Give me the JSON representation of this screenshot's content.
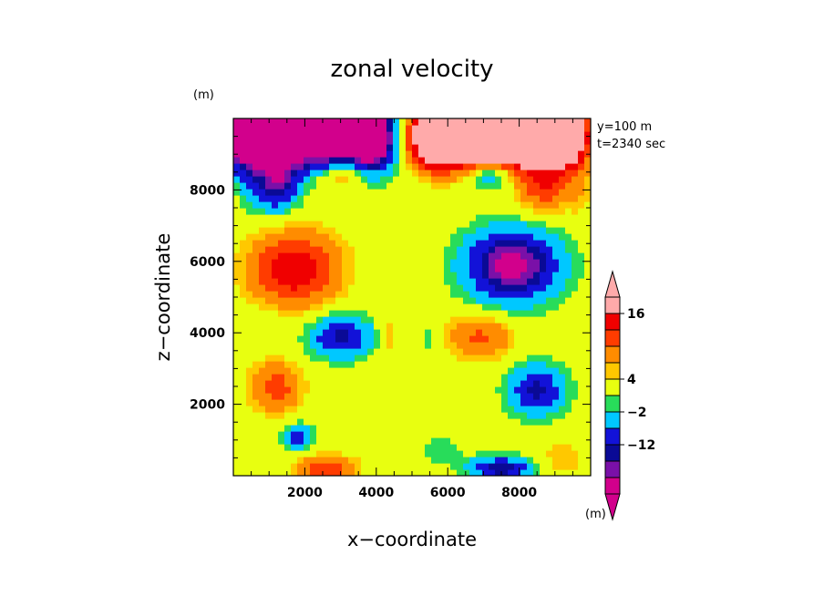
{
  "chart_data": {
    "type": "heatmap",
    "title": "zonal velocity",
    "xlabel": "x−coordinate",
    "ylabel": "z−coordinate",
    "x_unit": "(m)",
    "y_unit": "(m)",
    "xlim": [
      0,
      10000
    ],
    "ylim": [
      0,
      10000
    ],
    "x_ticks": [
      "2000",
      "4000",
      "6000",
      "8000"
    ],
    "y_ticks": [
      "2000",
      "4000",
      "6000",
      "8000"
    ],
    "x_tick_values": [
      2000,
      4000,
      6000,
      8000
    ],
    "y_tick_values": [
      2000,
      4000,
      6000,
      8000
    ],
    "annotations": [
      "y=100 m",
      "t=2340 sec"
    ],
    "colorbar": {
      "unit": "(m)",
      "labels": [
        "16",
        "4",
        "−2",
        "−12"
      ],
      "label_values": [
        16,
        4,
        -2,
        -12
      ],
      "colors": [
        "#d2008c",
        "#7a10a8",
        "#0a0a96",
        "#1212d8",
        "#00c8ff",
        "#28dc5a",
        "#e8ff10",
        "#ffc800",
        "#ff8c00",
        "#ff3c00",
        "#f00000",
        "#ffaaaa"
      ],
      "extend": "both"
    },
    "background_color": "#e8ff10",
    "field": [
      {
        "x": 400,
        "y": 9500,
        "sx": 700,
        "sz": 900,
        "value": -30
      },
      {
        "x": 1500,
        "y": 9500,
        "sx": 800,
        "sz": 900,
        "value": -30
      },
      {
        "x": 2800,
        "y": 9500,
        "sx": 800,
        "sz": 900,
        "value": -30
      },
      {
        "x": 3900,
        "y": 9500,
        "sx": 600,
        "sz": 900,
        "value": -30
      },
      {
        "x": 5700,
        "y": 9500,
        "sx": 700,
        "sz": 800,
        "value": 40
      },
      {
        "x": 6900,
        "y": 9500,
        "sx": 800,
        "sz": 800,
        "value": 40
      },
      {
        "x": 8100,
        "y": 9500,
        "sx": 800,
        "sz": 800,
        "value": 40
      },
      {
        "x": 9300,
        "y": 9500,
        "sx": 600,
        "sz": 800,
        "value": 35
      },
      {
        "x": 1200,
        "y": 8100,
        "sx": 600,
        "sz": 700,
        "value": -14
      },
      {
        "x": 400,
        "y": 8000,
        "sx": 300,
        "sz": 900,
        "value": -2
      },
      {
        "x": 3000,
        "y": 8500,
        "sx": 700,
        "sz": 500,
        "value": 9
      },
      {
        "x": 7200,
        "y": 8500,
        "sx": 600,
        "sz": 450,
        "value": -12
      },
      {
        "x": 8700,
        "y": 8100,
        "sx": 700,
        "sz": 700,
        "value": 11
      },
      {
        "x": 9700,
        "y": 8000,
        "sx": 300,
        "sz": 800,
        "value": 3
      },
      {
        "x": 1700,
        "y": 5800,
        "sx": 1200,
        "sz": 1000,
        "value": 16
      },
      {
        "x": 1000,
        "y": 4500,
        "sx": 400,
        "sz": 300,
        "value": -2
      },
      {
        "x": 7800,
        "y": 5900,
        "sx": 1300,
        "sz": 1000,
        "value": -20
      },
      {
        "x": 3000,
        "y": 3900,
        "sx": 900,
        "sz": 600,
        "value": -13
      },
      {
        "x": 4350,
        "y": 3900,
        "sx": 300,
        "sz": 600,
        "value": 4
      },
      {
        "x": 5450,
        "y": 3900,
        "sx": 300,
        "sz": 600,
        "value": -3
      },
      {
        "x": 6900,
        "y": 3900,
        "sx": 900,
        "sz": 600,
        "value": 9
      },
      {
        "x": 1200,
        "y": 2500,
        "sx": 700,
        "sz": 700,
        "value": 10
      },
      {
        "x": 8500,
        "y": 2400,
        "sx": 800,
        "sz": 700,
        "value": -13
      },
      {
        "x": 1800,
        "y": 1100,
        "sx": 400,
        "sz": 350,
        "value": -11
      },
      {
        "x": 2600,
        "y": 200,
        "sx": 800,
        "sz": 350,
        "value": 12
      },
      {
        "x": 7500,
        "y": 200,
        "sx": 900,
        "sz": 350,
        "value": -14
      },
      {
        "x": 5800,
        "y": 700,
        "sx": 600,
        "sz": 400,
        "value": -4
      },
      {
        "x": 9200,
        "y": 500,
        "sx": 600,
        "sz": 500,
        "value": 4
      }
    ]
  }
}
